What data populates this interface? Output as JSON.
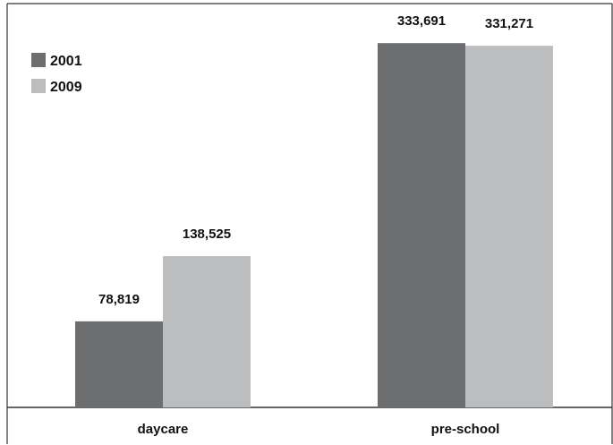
{
  "chart_data": {
    "type": "bar",
    "title": "",
    "xlabel": "",
    "ylabel": "",
    "categories": [
      "daycare",
      "pre-school"
    ],
    "series": [
      {
        "name": "2001",
        "values": [
          78819,
          333691
        ],
        "labels": [
          "78,819",
          "333,691"
        ]
      },
      {
        "name": "2009",
        "values": [
          138525,
          331271
        ],
        "labels": [
          "138,525",
          "331,271"
        ]
      }
    ],
    "ylim": [
      0,
      365000
    ],
    "grid": false,
    "legend": "top-left"
  },
  "colors": {
    "series_2001": "#6d6e70",
    "series_2009": "#bcbdbf",
    "frame": "#333333"
  }
}
